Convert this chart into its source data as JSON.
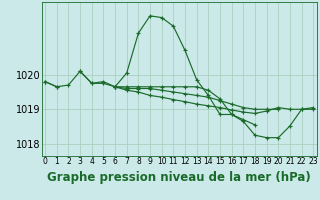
{
  "background_color": "#cce9e9",
  "grid_color": "#aacfbf",
  "line_color": "#1a6b2a",
  "title": "Graphe pression niveau de la mer (hPa)",
  "hours": [
    0,
    1,
    2,
    3,
    4,
    5,
    6,
    7,
    8,
    9,
    10,
    11,
    12,
    13,
    14,
    15,
    16,
    17,
    18,
    19,
    20,
    21,
    22,
    23
  ],
  "series1": [
    1019.8,
    1019.65,
    1019.7,
    1020.1,
    1019.75,
    1019.75,
    1019.65,
    1020.05,
    1021.2,
    1021.7,
    1021.65,
    1021.4,
    1020.7,
    1019.85,
    1019.4,
    1018.85,
    1018.85,
    1018.7,
    1018.55,
    null,
    null,
    null,
    null,
    null
  ],
  "series2": [
    1019.8,
    1019.65,
    null,
    1020.1,
    1019.75,
    1019.8,
    1019.65,
    1019.6,
    1019.6,
    1019.6,
    1019.55,
    1019.5,
    1019.45,
    1019.4,
    1019.35,
    1019.25,
    1019.15,
    1019.05,
    1019.0,
    1019.0,
    1019.0,
    null,
    null,
    null
  ],
  "series3": [
    null,
    null,
    null,
    null,
    null,
    null,
    1019.65,
    1019.55,
    1019.5,
    1019.4,
    1019.35,
    1019.28,
    1019.22,
    1019.15,
    1019.1,
    1019.05,
    1018.98,
    1018.92,
    1018.88,
    1018.95,
    1019.05,
    1019.0,
    1019.0,
    1019.0
  ],
  "series4": [
    null,
    null,
    null,
    null,
    null,
    null,
    1019.65,
    1019.65,
    1019.65,
    1019.65,
    1019.65,
    1019.65,
    1019.65,
    1019.65,
    1019.55,
    1019.3,
    1018.85,
    1018.65,
    1018.25,
    1018.18,
    1018.18,
    1018.52,
    1019.0,
    1019.05
  ],
  "yticks": [
    1018,
    1019,
    1020
  ],
  "ylim": [
    1017.65,
    1022.1
  ],
  "xlim": [
    -0.3,
    23.3
  ],
  "title_fontsize": 8.5,
  "tick_fontsize": 7,
  "xtick_fontsize": 5.5
}
